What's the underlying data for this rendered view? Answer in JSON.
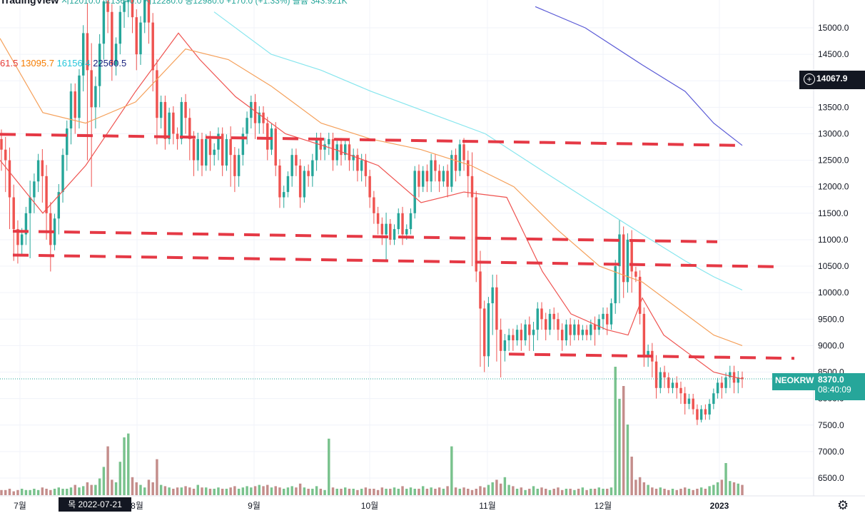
{
  "header": {
    "brand": "TradingView",
    "ohlc": "시12010.0 고13640.0 저12280.0 종12980.0 +170.0 (+1.33%) 볼륨 343.921K"
  },
  "moving_averages": [
    {
      "value": "61.5",
      "color": "#e53935"
    },
    {
      "value": "13095.7",
      "color": "#f57c00"
    },
    {
      "value": "16156.4",
      "color": "#26c6da"
    },
    {
      "value": "22560.5",
      "color": "#1a237e"
    }
  ],
  "crosshair_price": "14067.9",
  "symbol": "NEOKRW",
  "last_price": "8370.0",
  "countdown": "08:40:09",
  "crosshair_date": "목 2022-07-21",
  "colors": {
    "up": "#26a69a",
    "down": "#ef5350",
    "vol_up": "#79c28d",
    "vol_down": "#c48d8b",
    "hline": "#e53945"
  },
  "chart_data": {
    "type": "candlestick",
    "y_ticks": [
      "6500.0",
      "7000.0",
      "7500.0",
      "8000.0",
      "8500.0",
      "9000.0",
      "9500.0",
      "10000.0",
      "10500.0",
      "11000.0",
      "11500.0",
      "12000.0",
      "12500.0",
      "13000.0",
      "13500.0",
      "14000.0",
      "14500.0",
      "15000.0"
    ],
    "x_ticks": [
      "7월",
      "8월",
      "9월",
      "10월",
      "11월",
      "12월",
      "2023"
    ],
    "ylim": [
      6300,
      15400
    ],
    "candles": [
      [
        12900,
        12700,
        12300
      ],
      [
        12700,
        12500,
        11900
      ],
      [
        12500,
        11800,
        11200
      ],
      [
        11800,
        11200,
        10600
      ],
      [
        11200,
        10900,
        10550
      ],
      [
        10900,
        11100,
        10700
      ],
      [
        11100,
        11500,
        10900
      ],
      [
        11500,
        11800,
        10650
      ],
      [
        11800,
        12100,
        11500
      ],
      [
        12100,
        12500,
        11900
      ],
      [
        12500,
        12200,
        11700
      ],
      [
        12200,
        11500,
        11000
      ],
      [
        11500,
        10900,
        10400
      ],
      [
        10900,
        11400,
        10800
      ],
      [
        11400,
        11900,
        11100
      ],
      [
        11900,
        12600,
        11700
      ],
      [
        12600,
        13100,
        12300
      ],
      [
        13100,
        13800,
        12800
      ],
      [
        13800,
        13300,
        13000
      ],
      [
        13300,
        14100,
        13100
      ],
      [
        14100,
        14900,
        13800
      ],
      [
        14900,
        14200,
        12500
      ],
      [
        14200,
        13500,
        12000
      ],
      [
        13500,
        13900,
        13100
      ],
      [
        13900,
        14700,
        13500
      ],
      [
        14700,
        15500,
        14400
      ],
      [
        15500,
        15300,
        14900
      ],
      [
        15300,
        14300,
        14000
      ],
      [
        14300,
        14700,
        14100
      ],
      [
        14700,
        15300,
        14500
      ],
      [
        15300,
        15500,
        15000
      ],
      [
        15500,
        15900,
        15200
      ],
      [
        15900,
        15200,
        14900
      ],
      [
        15200,
        14500,
        14200
      ],
      [
        14500,
        15100,
        14300
      ],
      [
        15100,
        15600,
        14900
      ],
      [
        15600,
        15100,
        14700
      ],
      [
        15100,
        14200,
        13800
      ],
      [
        14200,
        13300,
        12800
      ],
      [
        13300,
        13600,
        13100
      ],
      [
        13600,
        12900,
        12700
      ],
      [
        12900,
        13400,
        12800
      ],
      [
        13400,
        13000,
        12800
      ],
      [
        13000,
        12900,
        12700
      ],
      [
        12900,
        13600,
        12800
      ],
      [
        13600,
        13300,
        13000
      ],
      [
        13300,
        12900,
        12500
      ],
      [
        12900,
        12500,
        12200
      ],
      [
        12500,
        12900,
        12300
      ],
      [
        12900,
        12400,
        12200
      ],
      [
        12400,
        12900,
        12300
      ],
      [
        12900,
        12600,
        12300
      ],
      [
        12600,
        12700,
        12400
      ],
      [
        12700,
        13000,
        12500
      ],
      [
        13000,
        12400,
        12200
      ],
      [
        12400,
        12900,
        12300
      ],
      [
        12900,
        12600,
        12000
      ],
      [
        12600,
        12200,
        11900
      ],
      [
        12200,
        12600,
        12000
      ],
      [
        12600,
        13000,
        12400
      ],
      [
        13000,
        13300,
        12800
      ],
      [
        13300,
        13600,
        13100
      ],
      [
        13600,
        13200,
        12900
      ],
      [
        13200,
        13400,
        13000
      ],
      [
        13400,
        13200,
        13000
      ],
      [
        13200,
        12700,
        12500
      ],
      [
        12700,
        13100,
        12600
      ],
      [
        13100,
        12400,
        12200
      ],
      [
        12400,
        11800,
        11600
      ],
      [
        11800,
        11900,
        11600
      ],
      [
        11900,
        12200,
        11800
      ],
      [
        12200,
        12600,
        12000
      ],
      [
        12600,
        12400,
        12200
      ],
      [
        12400,
        11800,
        11600
      ],
      [
        11800,
        12300,
        11700
      ],
      [
        12300,
        12200,
        12000
      ],
      [
        12200,
        12500,
        12000
      ],
      [
        12500,
        12900,
        12300
      ],
      [
        12900,
        12700,
        12500
      ],
      [
        12700,
        12800,
        12500
      ],
      [
        12800,
        12900,
        12600
      ],
      [
        12900,
        12500,
        12300
      ],
      [
        12500,
        12800,
        12400
      ],
      [
        12800,
        12600,
        12400
      ],
      [
        12600,
        12800,
        12500
      ],
      [
        12800,
        12500,
        12300
      ],
      [
        12500,
        12600,
        12300
      ],
      [
        12600,
        12300,
        12100
      ],
      [
        12300,
        12500,
        12100
      ],
      [
        12500,
        12200,
        12000
      ],
      [
        12200,
        11800,
        11600
      ],
      [
        11800,
        11500,
        11300
      ],
      [
        11500,
        11300,
        11100
      ],
      [
        11300,
        11100,
        10900
      ],
      [
        11100,
        11300,
        10600
      ],
      [
        11300,
        11000,
        10900
      ],
      [
        11000,
        11200,
        10900
      ],
      [
        11200,
        11500,
        11100
      ],
      [
        11500,
        11100,
        10900
      ],
      [
        11100,
        11200,
        11000
      ],
      [
        11200,
        11500,
        11100
      ],
      [
        11500,
        12300,
        11400
      ],
      [
        12300,
        12000,
        11800
      ],
      [
        12000,
        12300,
        11900
      ],
      [
        12300,
        12100,
        11900
      ],
      [
        12100,
        12500,
        11900
      ],
      [
        12500,
        12300,
        12100
      ],
      [
        12300,
        12100,
        11900
      ],
      [
        12100,
        12300,
        12000
      ],
      [
        12300,
        12000,
        11800
      ],
      [
        12000,
        12600,
        11900
      ],
      [
        12600,
        12300,
        12100
      ],
      [
        12300,
        12800,
        12200
      ],
      [
        12800,
        12500,
        12300
      ],
      [
        12500,
        12200,
        11800
      ],
      [
        12200,
        11800,
        10500
      ],
      [
        11800,
        10400,
        10200
      ],
      [
        10400,
        9700,
        8600
      ],
      [
        9700,
        8800,
        8500
      ],
      [
        8800,
        9800,
        8600
      ],
      [
        9800,
        10100,
        9200
      ],
      [
        10100,
        9300,
        8700
      ],
      [
        9300,
        8900,
        8400
      ],
      [
        8900,
        9100,
        8700
      ],
      [
        9100,
        9200,
        8900
      ],
      [
        9200,
        9100,
        8900
      ],
      [
        9100,
        9300,
        9000
      ],
      [
        9300,
        9100,
        8900
      ],
      [
        9100,
        9400,
        9000
      ],
      [
        9400,
        9200,
        8900
      ],
      [
        9200,
        9300,
        8900
      ],
      [
        9300,
        9700,
        9100
      ],
      [
        9700,
        9500,
        9300
      ],
      [
        9500,
        9300,
        9100
      ],
      [
        9300,
        9600,
        9200
      ],
      [
        9600,
        9500,
        9300
      ],
      [
        9500,
        9300,
        9100
      ],
      [
        9300,
        9100,
        8900
      ],
      [
        9100,
        9400,
        9000
      ],
      [
        9400,
        9200,
        9000
      ],
      [
        9200,
        9400,
        9100
      ],
      [
        9400,
        9200,
        9100
      ],
      [
        9200,
        9300,
        9100
      ],
      [
        9300,
        9200,
        9100
      ],
      [
        9200,
        9400,
        9100
      ],
      [
        9400,
        9300,
        9000
      ],
      [
        9300,
        9500,
        9200
      ],
      [
        9500,
        9600,
        9300
      ],
      [
        9600,
        9400,
        9200
      ],
      [
        9400,
        9800,
        9300
      ],
      [
        9800,
        10500,
        9600
      ],
      [
        10500,
        11100,
        9800
      ],
      [
        11100,
        10200,
        9900
      ],
      [
        10200,
        11000,
        10000
      ],
      [
        11000,
        10400,
        10000
      ],
      [
        10400,
        10300,
        10200
      ],
      [
        10300,
        9600,
        9400
      ],
      [
        9600,
        8800,
        8600
      ],
      [
        8800,
        8900,
        8600
      ],
      [
        8900,
        8700,
        8400
      ],
      [
        8700,
        8200,
        8000
      ],
      [
        8200,
        8500,
        8100
      ],
      [
        8500,
        8400,
        8200
      ],
      [
        8400,
        8200,
        8100
      ],
      [
        8200,
        8300,
        8100
      ],
      [
        8300,
        8200,
        8000
      ],
      [
        8200,
        8100,
        7900
      ],
      [
        8100,
        7900,
        7700
      ],
      [
        7900,
        8000,
        7800
      ],
      [
        8000,
        7800,
        7700
      ],
      [
        7800,
        7600,
        7500
      ],
      [
        7600,
        7800,
        7550
      ],
      [
        7800,
        7700,
        7600
      ],
      [
        7700,
        7900,
        7600
      ],
      [
        7900,
        8100,
        7800
      ],
      [
        8100,
        8300,
        8000
      ],
      [
        8300,
        8200,
        8000
      ],
      [
        8200,
        8400,
        8100
      ],
      [
        8400,
        8500,
        8200
      ],
      [
        8500,
        8300,
        8100
      ],
      [
        8300,
        8400,
        8100
      ],
      [
        8400,
        8370,
        8200
      ]
    ],
    "volume_rel": [
      0.04,
      0.04,
      0.05,
      0.03,
      0.04,
      0.05,
      0.04,
      0.04,
      0.05,
      0.04,
      0.06,
      0.05,
      0.04,
      0.05,
      0.06,
      0.05,
      0.05,
      0.06,
      0.08,
      0.06,
      0.07,
      0.1,
      0.08,
      0.08,
      0.13,
      0.22,
      0.38,
      0.12,
      0.1,
      0.26,
      0.45,
      0.48,
      0.14,
      0.1,
      0.08,
      0.06,
      0.12,
      0.1,
      0.28,
      0.08,
      0.07,
      0.06,
      0.05,
      0.06,
      0.06,
      0.07,
      0.06,
      0.05,
      0.08,
      0.06,
      0.06,
      0.05,
      0.05,
      0.06,
      0.05,
      0.05,
      0.06,
      0.07,
      0.05,
      0.06,
      0.07,
      0.06,
      0.07,
      0.08,
      0.07,
      0.08,
      0.06,
      0.07,
      0.06,
      0.05,
      0.06,
      0.07,
      0.06,
      0.09,
      0.06,
      0.05,
      0.05,
      0.07,
      0.05,
      0.04,
      0.44,
      0.06,
      0.05,
      0.05,
      0.06,
      0.05,
      0.05,
      0.04,
      0.05,
      0.06,
      0.05,
      0.05,
      0.04,
      0.06,
      0.05,
      0.05,
      0.06,
      0.05,
      0.07,
      0.05,
      0.06,
      0.05,
      0.05,
      0.07,
      0.05,
      0.06,
      0.05,
      0.06,
      0.05,
      0.07,
      0.38,
      0.06,
      0.05,
      0.06,
      0.05,
      0.04,
      0.05,
      0.07,
      0.06,
      0.08,
      0.1,
      0.12,
      0.09,
      0.14,
      0.08,
      0.07,
      0.05,
      0.06,
      0.04,
      0.05,
      0.07,
      0.05,
      0.06,
      0.05,
      0.04,
      0.05,
      0.06,
      0.04,
      0.05,
      0.05,
      0.04,
      0.05,
      0.06,
      0.04,
      0.05,
      0.05,
      0.06,
      0.05,
      0.05,
      0.06,
      1.0,
      0.75,
      0.85,
      0.55,
      0.3,
      0.12,
      0.14,
      0.1,
      0.08,
      0.06,
      0.05,
      0.06,
      0.05,
      0.04,
      0.05,
      0.04,
      0.05,
      0.06,
      0.05,
      0.04,
      0.05,
      0.06,
      0.05,
      0.07,
      0.08,
      0.1,
      0.12,
      0.25,
      0.11,
      0.1,
      0.09,
      0.08
    ],
    "support_resistance_lines": [
      {
        "from": [
          0,
          12990
        ],
        "to": [
          1037,
          12780
        ]
      },
      {
        "from": [
          18,
          11160
        ],
        "to": [
          1005,
          10960
        ]
      },
      {
        "from": [
          18,
          10710
        ],
        "to": [
          1090,
          10490
        ]
      },
      {
        "from": [
          713,
          8840
        ],
        "to": [
          1113,
          8760
        ]
      }
    ],
    "moving_average_series": [
      {
        "color": "#ef5350",
        "points": [
          [
            0,
            12500
          ],
          [
            60,
            11500
          ],
          [
            120,
            12400
          ],
          [
            190,
            13800
          ],
          [
            250,
            14900
          ],
          [
            280,
            14400
          ],
          [
            330,
            13700
          ],
          [
            400,
            13000
          ],
          [
            470,
            12700
          ],
          [
            530,
            12400
          ],
          [
            590,
            11700
          ],
          [
            650,
            11900
          ],
          [
            710,
            11800
          ],
          [
            760,
            10400
          ],
          [
            800,
            9600
          ],
          [
            850,
            9300
          ],
          [
            880,
            9200
          ],
          [
            900,
            9900
          ],
          [
            930,
            9200
          ],
          [
            970,
            8800
          ],
          [
            1000,
            8500
          ],
          [
            1040,
            8370
          ]
        ]
      },
      {
        "color": "#f5a05a",
        "points": [
          [
            0,
            14800
          ],
          [
            60,
            13400
          ],
          [
            120,
            13200
          ],
          [
            190,
            13600
          ],
          [
            260,
            14600
          ],
          [
            320,
            14400
          ],
          [
            380,
            13900
          ],
          [
            450,
            13200
          ],
          [
            520,
            12900
          ],
          [
            590,
            12700
          ],
          [
            660,
            12400
          ],
          [
            720,
            12000
          ],
          [
            780,
            11200
          ],
          [
            840,
            10500
          ],
          [
            900,
            10200
          ],
          [
            960,
            9600
          ],
          [
            1000,
            9200
          ],
          [
            1040,
            9000
          ]
        ]
      },
      {
        "color": "#87e6ee",
        "points": [
          [
            300,
            15300
          ],
          [
            380,
            14500
          ],
          [
            450,
            14200
          ],
          [
            520,
            13800
          ],
          [
            600,
            13400
          ],
          [
            680,
            13000
          ],
          [
            760,
            12300
          ],
          [
            830,
            11700
          ],
          [
            900,
            11100
          ],
          [
            960,
            10600
          ],
          [
            1000,
            10300
          ],
          [
            1040,
            10050
          ]
        ]
      },
      {
        "color": "#5a5ad6",
        "points": [
          [
            750,
            15400
          ],
          [
            820,
            15000
          ],
          [
            900,
            14300
          ],
          [
            960,
            13800
          ],
          [
            1000,
            13200
          ],
          [
            1040,
            12780
          ]
        ]
      }
    ]
  }
}
